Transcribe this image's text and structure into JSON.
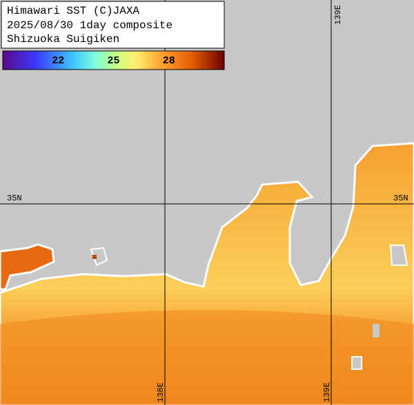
{
  "header": {
    "lines": [
      "Himawari SST (C)JAXA",
      "2025/08/30 1day composite",
      "Shizuoka Suigiken"
    ]
  },
  "colorbar": {
    "range": [
      19,
      31
    ],
    "ticks": [
      22,
      25,
      28
    ]
  },
  "grid": {
    "latitudes": [
      "35N"
    ],
    "longitudes": [
      "138E",
      "139E"
    ]
  }
}
